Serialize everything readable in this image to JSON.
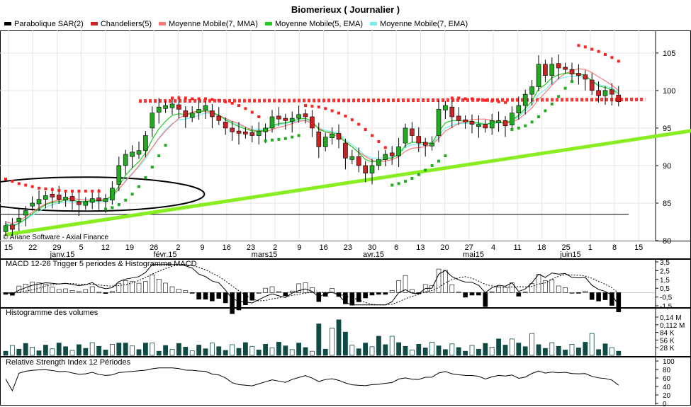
{
  "title": "Biomerieux  ( Journalier )",
  "legend": [
    {
      "label": "Parabolique SAR(2)",
      "color": "#000000"
    },
    {
      "label": "Chandeliers(5)",
      "color": "#cc2222"
    },
    {
      "label": "Moyenne Mobile(7, MMA)",
      "color": "#ff7777"
    },
    {
      "label": "Moyenne Mobile(5, EMA)",
      "color": "#22cc22"
    },
    {
      "label": "Moyenne Mobile(7, EMA)",
      "color": "#77eeee"
    }
  ],
  "copyright": "© Ariane Software - Axial Finance",
  "colors": {
    "up": "#22aa22",
    "down": "#cc2222",
    "sar_up": "#22aa22",
    "sar_down": "#ff2222",
    "support": "#88ee22",
    "resistance": "#ff3333",
    "volume": "#0f4a44",
    "grid": "#e6e6e6"
  },
  "chart_data": [
    {
      "type": "candlestick",
      "title": "Biomerieux  ( Journalier )",
      "ylim": [
        80,
        108
      ],
      "yticks": [
        80,
        85,
        90,
        95,
        100,
        105
      ],
      "xticks": [
        "15",
        "22",
        "29",
        "5",
        "12",
        "19",
        "26",
        "2",
        "9",
        "16",
        "23",
        "2",
        "9",
        "16",
        "23",
        "30",
        "6",
        "13",
        "20",
        "27",
        "4",
        "11",
        "18",
        "25",
        "1",
        "8",
        "15"
      ],
      "month_labels": [
        "janv.15",
        "févr.15",
        "mars15",
        "avr.15",
        "mai15",
        "juin15"
      ],
      "close": [
        82.0,
        81.5,
        83.0,
        84.0,
        85.0,
        85.5,
        86.0,
        85.8,
        85.5,
        85.8,
        85.3,
        84.8,
        85.2,
        85.6,
        85.3,
        85.6,
        87.0,
        90.0,
        91.5,
        91.8,
        92.0,
        94.0,
        97.0,
        97.8,
        98.0,
        98.2,
        97.5,
        96.5,
        97.0,
        97.5,
        98.0,
        96.5,
        96.0,
        95.0,
        94.5,
        94.3,
        94.2,
        94.0,
        94.6,
        95.0,
        96.5,
        96.2,
        96.0,
        96.3,
        96.8,
        96.5,
        95.0,
        92.5,
        93.8,
        94.2,
        93.5,
        91.0,
        91.2,
        90.0,
        89.0,
        90.0,
        90.8,
        91.5,
        91.3,
        92.5,
        95.0,
        94.0,
        93.0,
        92.7,
        93.0,
        97.5,
        98.0,
        96.5,
        96.0,
        95.8,
        95.5,
        95.5,
        95.0,
        96.0,
        96.0,
        95.3,
        97.0,
        98.0,
        99.5,
        100.5,
        103.5,
        102.0,
        103.5,
        103.0,
        102.8,
        102.2,
        102.0,
        101.5,
        100.0,
        99.3,
        100.0,
        99.5,
        98.5
      ],
      "open_delta": [
        0.8,
        -0.6,
        0.5,
        0.6,
        0.4,
        0.6,
        0.5,
        -0.4,
        -0.6,
        0.4,
        -0.6,
        -0.4,
        0.5,
        0.5,
        -0.4,
        0.4,
        1.6,
        2.5,
        1.5,
        0.6,
        0.5,
        2.0,
        2.0,
        0.7,
        0.4,
        0.5,
        -0.6,
        -0.8,
        0.6,
        0.5,
        0.6,
        -0.8,
        -0.6,
        -0.8,
        -0.5,
        -0.3,
        -0.3,
        -0.4,
        0.6,
        0.5,
        1.5,
        -0.4,
        -0.3,
        0.4,
        0.5,
        -0.4,
        -1.5,
        -2.0,
        1.3,
        0.5,
        -0.8,
        -2.0,
        0.4,
        -1.2,
        -1.0,
        1.0,
        0.8,
        0.7,
        -0.4,
        1.2,
        2.0,
        -0.9,
        -0.9,
        -0.4,
        0.4,
        3.5,
        0.6,
        -1.3,
        -0.6,
        -0.3,
        -0.4,
        0.3,
        -0.5,
        1.0,
        0.3,
        -0.7,
        1.6,
        1.0,
        1.5,
        1.0,
        3.0,
        -1.5,
        1.5,
        -0.6,
        -0.3,
        -0.6,
        -0.3,
        -0.6,
        -1.4,
        -0.7,
        0.7,
        -0.6,
        -0.9
      ],
      "sma7": [
        82.5,
        82.3,
        82.6,
        83.2,
        83.8,
        84.4,
        84.9,
        85.2,
        85.4,
        85.6,
        85.6,
        85.5,
        85.4,
        85.4,
        85.4,
        85.5,
        86.0,
        86.9,
        87.9,
        88.9,
        90.0,
        91.2,
        92.4,
        93.6,
        94.6,
        95.5,
        96.3,
        96.8,
        97.1,
        97.3,
        97.2,
        97.0,
        96.7,
        96.3,
        95.9,
        95.6,
        95.1,
        94.7,
        94.6,
        94.5,
        94.8,
        95.1,
        95.3,
        95.6,
        95.9,
        96.0,
        95.6,
        95.0,
        94.5,
        94.2,
        93.8,
        93.2,
        92.5,
        91.8,
        91.2,
        90.7,
        90.5,
        90.6,
        90.8,
        91.2,
        91.9,
        92.3,
        92.4,
        92.5,
        92.8,
        93.6,
        94.6,
        95.1,
        95.6,
        95.9,
        96.1,
        96.2,
        96.2,
        96.0,
        95.8,
        95.6,
        95.8,
        96.2,
        96.9,
        97.7,
        98.8,
        99.7,
        100.7,
        101.6,
        102.3,
        102.6,
        102.9,
        102.8,
        102.4,
        101.8,
        101.3,
        100.7,
        100.0
      ],
      "ema5": [
        82.2,
        81.9,
        82.3,
        82.9,
        83.6,
        84.2,
        84.8,
        85.1,
        85.2,
        85.4,
        85.4,
        85.2,
        85.2,
        85.3,
        85.3,
        85.4,
        86.0,
        87.3,
        88.7,
        89.7,
        90.5,
        91.7,
        93.5,
        94.9,
        95.9,
        96.7,
        96.9,
        96.8,
        96.9,
        97.1,
        97.4,
        97.1,
        96.7,
        96.1,
        95.6,
        95.2,
        94.9,
        94.6,
        94.6,
        94.7,
        95.3,
        95.6,
        95.7,
        95.9,
        96.2,
        96.3,
        95.9,
        94.8,
        94.5,
        94.4,
        94.1,
        93.1,
        92.5,
        91.7,
        90.8,
        90.5,
        90.6,
        90.9,
        91.0,
        91.5,
        92.7,
        93.1,
        93.1,
        93.0,
        93.0,
        94.5,
        95.7,
        96.0,
        96.0,
        95.9,
        95.8,
        95.7,
        95.5,
        95.7,
        95.8,
        95.6,
        96.1,
        96.7,
        97.6,
        98.6,
        100.2,
        100.8,
        101.7,
        102.1,
        102.3,
        102.3,
        102.2,
        102.0,
        101.3,
        100.6,
        100.4,
        100.1,
        99.6
      ],
      "ema7": [
        82.3,
        82.1,
        82.3,
        82.8,
        83.4,
        83.9,
        84.4,
        84.8,
        85.0,
        85.2,
        85.2,
        85.1,
        85.1,
        85.2,
        85.2,
        85.3,
        85.7,
        86.8,
        88.0,
        89.0,
        89.8,
        90.9,
        92.4,
        93.7,
        94.8,
        95.6,
        96.1,
        96.2,
        96.4,
        96.7,
        97.0,
        96.9,
        96.7,
        96.2,
        95.8,
        95.4,
        95.1,
        94.8,
        94.8,
        94.8,
        95.2,
        95.4,
        95.6,
        95.8,
        96.0,
        96.1,
        95.8,
        95.0,
        94.7,
        94.5,
        94.3,
        93.4,
        92.8,
        92.1,
        91.3,
        91.0,
        91.0,
        91.1,
        91.1,
        91.5,
        92.4,
        92.8,
        92.8,
        92.8,
        92.9,
        94.0,
        95.0,
        95.4,
        95.6,
        95.6,
        95.6,
        95.6,
        95.4,
        95.6,
        95.7,
        95.6,
        96.0,
        96.5,
        97.3,
        98.1,
        99.5,
        100.1,
        101.0,
        101.5,
        101.8,
        101.9,
        101.9,
        101.8,
        101.3,
        100.8,
        100.6,
        100.3,
        99.8
      ],
      "sar": [
        {
          "v": 88.2,
          "dir": "down"
        },
        {
          "v": 87.9,
          "dir": "down"
        },
        {
          "v": 87.6,
          "dir": "down"
        },
        {
          "v": 87.4,
          "dir": "down"
        },
        {
          "v": 87.2,
          "dir": "down"
        },
        {
          "v": 87.0,
          "dir": "down"
        },
        {
          "v": 86.9,
          "dir": "down"
        },
        {
          "v": 86.8,
          "dir": "down"
        },
        {
          "v": 86.7,
          "dir": "down"
        },
        {
          "v": 86.6,
          "dir": "down"
        },
        {
          "v": 86.6,
          "dir": "down"
        },
        {
          "v": 86.6,
          "dir": "down"
        },
        {
          "v": 86.6,
          "dir": "down"
        },
        {
          "v": 86.6,
          "dir": "down"
        },
        {
          "v": 86.6,
          "dir": "down"
        },
        {
          "v": 84.2,
          "dir": "up"
        },
        {
          "v": 84.4,
          "dir": "up"
        },
        {
          "v": 84.8,
          "dir": "up"
        },
        {
          "v": 85.4,
          "dir": "up"
        },
        {
          "v": 86.2,
          "dir": "up"
        },
        {
          "v": 87.2,
          "dir": "up"
        },
        {
          "v": 88.4,
          "dir": "up"
        },
        {
          "v": 89.8,
          "dir": "up"
        },
        {
          "v": 91.3,
          "dir": "up"
        },
        {
          "v": 92.7,
          "dir": "up"
        },
        {
          "v": 99.0,
          "dir": "down"
        },
        {
          "v": 99.0,
          "dir": "down"
        },
        {
          "v": 99.0,
          "dir": "down"
        },
        {
          "v": 98.9,
          "dir": "down"
        },
        {
          "v": 98.9,
          "dir": "down"
        },
        {
          "v": 98.9,
          "dir": "down"
        },
        {
          "v": 98.8,
          "dir": "down"
        },
        {
          "v": 98.7,
          "dir": "down"
        },
        {
          "v": 98.5,
          "dir": "down"
        },
        {
          "v": 98.3,
          "dir": "down"
        },
        {
          "v": 98.0,
          "dir": "down"
        },
        {
          "v": 97.6,
          "dir": "down"
        },
        {
          "v": 97.1,
          "dir": "down"
        },
        {
          "v": 96.5,
          "dir": "down"
        },
        {
          "v": 93.3,
          "dir": "up"
        },
        {
          "v": 93.4,
          "dir": "up"
        },
        {
          "v": 93.5,
          "dir": "up"
        },
        {
          "v": 93.6,
          "dir": "up"
        },
        {
          "v": 93.8,
          "dir": "up"
        },
        {
          "v": 94.0,
          "dir": "up"
        },
        {
          "v": 98.0,
          "dir": "down"
        },
        {
          "v": 97.9,
          "dir": "down"
        },
        {
          "v": 97.8,
          "dir": "down"
        },
        {
          "v": 97.6,
          "dir": "down"
        },
        {
          "v": 97.3,
          "dir": "down"
        },
        {
          "v": 97.0,
          "dir": "down"
        },
        {
          "v": 96.6,
          "dir": "down"
        },
        {
          "v": 96.1,
          "dir": "down"
        },
        {
          "v": 95.5,
          "dir": "down"
        },
        {
          "v": 94.8,
          "dir": "down"
        },
        {
          "v": 94.0,
          "dir": "down"
        },
        {
          "v": 93.2,
          "dir": "down"
        },
        {
          "v": 92.4,
          "dir": "down"
        },
        {
          "v": 87.4,
          "dir": "up"
        },
        {
          "v": 87.6,
          "dir": "up"
        },
        {
          "v": 87.9,
          "dir": "up"
        },
        {
          "v": 88.3,
          "dir": "up"
        },
        {
          "v": 88.8,
          "dir": "up"
        },
        {
          "v": 89.4,
          "dir": "up"
        },
        {
          "v": 90.0,
          "dir": "up"
        },
        {
          "v": 90.6,
          "dir": "up"
        },
        {
          "v": 91.3,
          "dir": "up"
        },
        {
          "v": 99.0,
          "dir": "down"
        },
        {
          "v": 99.0,
          "dir": "down"
        },
        {
          "v": 98.9,
          "dir": "down"
        },
        {
          "v": 98.9,
          "dir": "down"
        },
        {
          "v": 98.8,
          "dir": "down"
        },
        {
          "v": 98.7,
          "dir": "down"
        },
        {
          "v": 98.6,
          "dir": "down"
        },
        {
          "v": 98.5,
          "dir": "down"
        },
        {
          "v": 98.4,
          "dir": "down"
        },
        {
          "v": 94.8,
          "dir": "up"
        },
        {
          "v": 95.0,
          "dir": "up"
        },
        {
          "v": 95.3,
          "dir": "up"
        },
        {
          "v": 95.8,
          "dir": "up"
        },
        {
          "v": 96.5,
          "dir": "up"
        },
        {
          "v": 97.3,
          "dir": "up"
        },
        {
          "v": 98.2,
          "dir": "up"
        },
        {
          "v": 99.2,
          "dir": "up"
        },
        {
          "v": 100.3,
          "dir": "up"
        },
        {
          "v": 101.2,
          "dir": "up"
        },
        {
          "v": 106.0,
          "dir": "down"
        },
        {
          "v": 105.8,
          "dir": "down"
        },
        {
          "v": 105.5,
          "dir": "down"
        },
        {
          "v": 105.2,
          "dir": "down"
        },
        {
          "v": 104.8,
          "dir": "down"
        },
        {
          "v": 104.4,
          "dir": "down"
        },
        {
          "v": 103.9,
          "dir": "down"
        }
      ],
      "support_line": {
        "from": [
          0,
          80.8
        ],
        "to": [
          97,
          94.7
        ]
      },
      "resistance_line": {
        "from": [
          36,
          98.6
        ],
        "to": [
          96,
          98.8
        ]
      },
      "horizontal_line": {
        "y": 83.5
      },
      "ellipse_center": [
        16,
        86.2
      ]
    },
    {
      "type": "line",
      "title": "MACD 12-26   Trigger 5 periodes & Histogramme MACD",
      "ylim": [
        -1.5,
        3.5
      ],
      "yticks": [
        -1.5,
        -0.5,
        0.5,
        1.5,
        2.5,
        3.5
      ],
      "ytick_labels": [
        "-1,5",
        "-0,5",
        "0,5",
        "1,5",
        "2,5",
        "3,5"
      ]
    },
    {
      "type": "bar",
      "title": "Histogramme des volumes",
      "ylim": [
        0,
        140000
      ],
      "ytick_labels": [
        "28 K",
        "56 K",
        "84 K",
        "0,112 M",
        "0,14 M"
      ]
    },
    {
      "type": "line",
      "title": "Relative Strength Index 12 Périodes",
      "ylim": [
        0,
        100
      ],
      "yticks": [
        0,
        20,
        40,
        60,
        80,
        100
      ]
    }
  ]
}
